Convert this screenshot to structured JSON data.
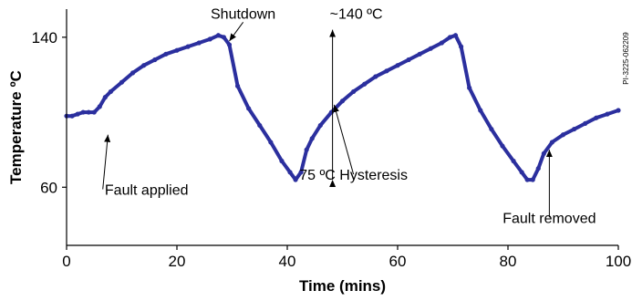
{
  "figure_code": "PI-3225-062209",
  "chart_data": {
    "type": "line",
    "xlabel": "Time (mins)",
    "ylabel": "Temperature ºC",
    "xlim": [
      0,
      100
    ],
    "ylim": [
      29,
      155
    ],
    "x_ticks": [
      0,
      20,
      40,
      60,
      80,
      100
    ],
    "y_ticks": [
      60,
      140
    ],
    "grid": false,
    "series_color": "#2b2f9e",
    "series": [
      {
        "x": [
          0,
          1,
          2,
          3,
          4,
          5,
          6,
          7,
          8,
          10,
          12,
          14,
          16,
          18,
          20,
          22,
          24,
          26,
          27.5,
          28.5,
          29.5,
          31,
          33,
          35,
          37,
          39,
          40.5,
          41.5,
          42.5,
          43.5,
          44.5,
          46,
          48,
          50,
          52,
          54,
          56,
          58,
          60,
          62,
          64,
          66,
          68,
          69.5,
          70.5,
          71.5,
          73,
          75,
          77,
          79,
          81,
          82.5,
          83.5,
          84.5,
          85.5,
          86.5,
          88,
          90,
          92,
          94,
          96,
          98,
          100
        ],
        "y": [
          98,
          98,
          99,
          100,
          100,
          100,
          103,
          108,
          111,
          116,
          121,
          125,
          128,
          131,
          133,
          135,
          137,
          139,
          141,
          140,
          136,
          114,
          102,
          93,
          84,
          74,
          68,
          64,
          68,
          80,
          86,
          93,
          100,
          106,
          111,
          115,
          119,
          122,
          125,
          128,
          131,
          134,
          137,
          140,
          141,
          135,
          113,
          101,
          91,
          82,
          74,
          68,
          64,
          64,
          70,
          78,
          84,
          88,
          91,
          94,
          97,
          99,
          101
        ]
      }
    ],
    "annotations": [
      {
        "text": "Shutdown",
        "x": 32,
        "y": 150,
        "arrow_to": [
          29.5,
          138
        ]
      },
      {
        "text": "~140 ºC",
        "x": 52.5,
        "y": 150
      },
      {
        "text": "75 ºC Hysteresis",
        "x": 52,
        "y": 64,
        "arrow_to": [
          48.5,
          104
        ]
      },
      {
        "text": "Fault applied",
        "x": 14.5,
        "y": 56,
        "arrow_to": [
          7.5,
          88
        ]
      },
      {
        "text": "Fault removed",
        "x": 87.5,
        "y": 41,
        "arrow_to": [
          87.5,
          80
        ]
      }
    ],
    "hysteresis_arrow": {
      "x": 48.2,
      "from": 144,
      "to": 64
    }
  }
}
